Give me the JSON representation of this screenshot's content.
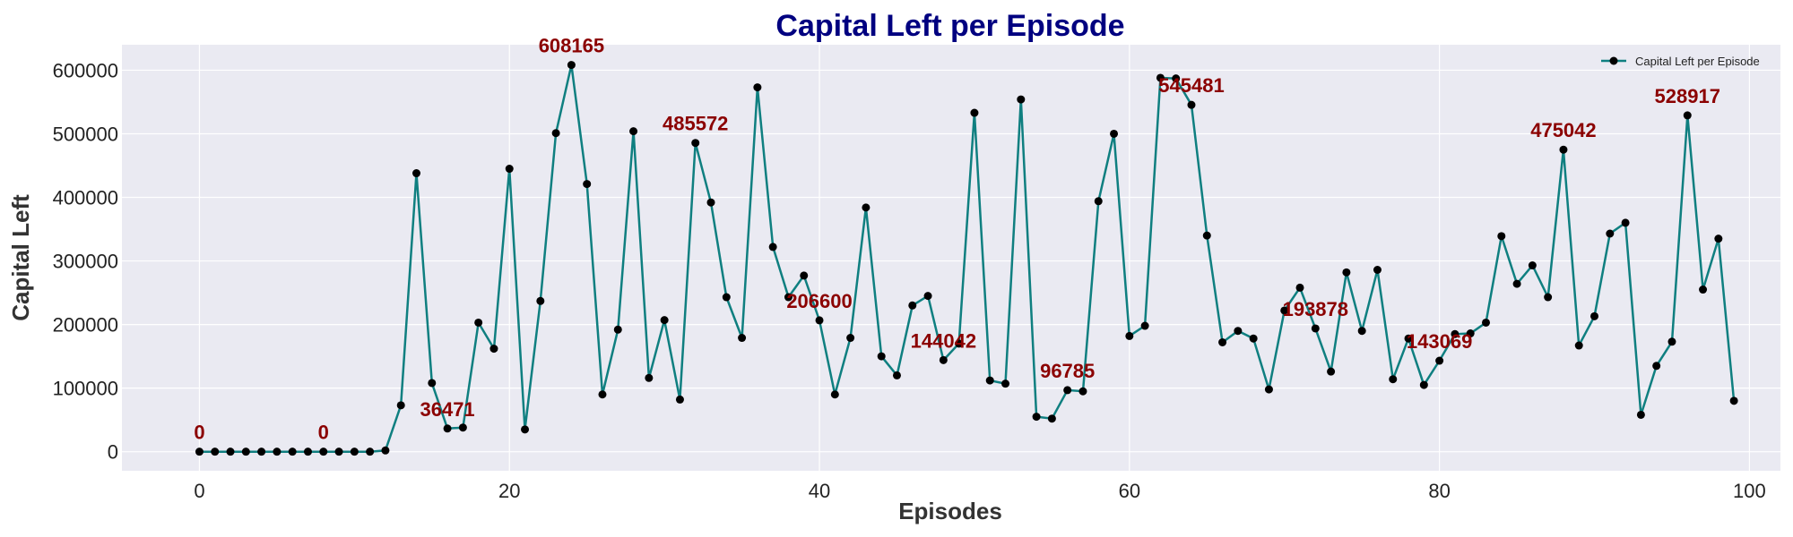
{
  "chart_data": {
    "type": "line",
    "title": "Capital Left per Episode",
    "xlabel": "Episodes",
    "ylabel": "Capital Left",
    "xlim": [
      -5,
      102
    ],
    "ylim": [
      -30000,
      640000
    ],
    "xticks": [
      0,
      20,
      40,
      60,
      80,
      100
    ],
    "yticks": [
      0,
      100000,
      200000,
      300000,
      400000,
      500000,
      600000
    ],
    "grid": true,
    "legend_position": "top-right",
    "series": [
      {
        "name": "Capital Left per Episode",
        "x": [
          0,
          1,
          2,
          3,
          4,
          5,
          6,
          7,
          8,
          9,
          10,
          11,
          12,
          13,
          14,
          15,
          16,
          17,
          18,
          19,
          20,
          21,
          22,
          23,
          24,
          25,
          26,
          27,
          28,
          29,
          30,
          31,
          32,
          33,
          34,
          35,
          36,
          37,
          38,
          39,
          40,
          41,
          42,
          43,
          44,
          45,
          46,
          47,
          48,
          49,
          50,
          51,
          52,
          53,
          54,
          55,
          56,
          57,
          58,
          59,
          60,
          61,
          62,
          63,
          64,
          65,
          66,
          67,
          68,
          69,
          70,
          71,
          72,
          73,
          74,
          75,
          76,
          77,
          78,
          79,
          80,
          81,
          82,
          83,
          84,
          85,
          86,
          87,
          88,
          89,
          90,
          91,
          92,
          93,
          94,
          95,
          96,
          97,
          98,
          99
        ],
        "y": [
          0,
          0,
          0,
          0,
          0,
          0,
          0,
          0,
          0,
          0,
          0,
          0,
          2000,
          73000,
          438000,
          108000,
          36471,
          38000,
          203000,
          162000,
          445000,
          35000,
          237000,
          501000,
          608165,
          421000,
          90000,
          192000,
          504000,
          116000,
          207000,
          82000,
          485572,
          392000,
          243000,
          179000,
          573000,
          322000,
          243000,
          277000,
          206600,
          90000,
          179000,
          384000,
          150000,
          120000,
          230000,
          245000,
          144042,
          170000,
          533000,
          112000,
          107000,
          554000,
          55000,
          52000,
          96785,
          95000,
          394000,
          500000,
          182000,
          198000,
          588000,
          587000,
          545481,
          340000,
          172000,
          190000,
          178000,
          98000,
          222000,
          258000,
          193878,
          126000,
          282000,
          190000,
          286000,
          114000,
          178000,
          105000,
          143069,
          185000,
          186000,
          203000,
          339000,
          264000,
          293000,
          243000,
          475042,
          167000,
          213000,
          343000,
          360000,
          58000,
          135000,
          173000,
          528917,
          255000,
          335000,
          80000
        ]
      }
    ],
    "annotations": [
      {
        "x": 0,
        "y": 0,
        "text": "0"
      },
      {
        "x": 8,
        "y": 0,
        "text": "0"
      },
      {
        "x": 16,
        "y": 36471,
        "text": "36471"
      },
      {
        "x": 24,
        "y": 608165,
        "text": "608165"
      },
      {
        "x": 32,
        "y": 485572,
        "text": "485572"
      },
      {
        "x": 40,
        "y": 206600,
        "text": "206600"
      },
      {
        "x": 48,
        "y": 144042,
        "text": "144042"
      },
      {
        "x": 56,
        "y": 96785,
        "text": "96785"
      },
      {
        "x": 64,
        "y": 545481,
        "text": "545481"
      },
      {
        "x": 72,
        "y": 193878,
        "text": "193878"
      },
      {
        "x": 80,
        "y": 143069,
        "text": "143069"
      },
      {
        "x": 88,
        "y": 475042,
        "text": "475042"
      },
      {
        "x": 96,
        "y": 528917,
        "text": "528917"
      }
    ],
    "colors": {
      "line": "#0f7f80",
      "marker": "#000000",
      "annotation": "#8b0000",
      "title": "#000080",
      "plot_background": "#eaeaf2",
      "grid": "#ffffff"
    }
  }
}
